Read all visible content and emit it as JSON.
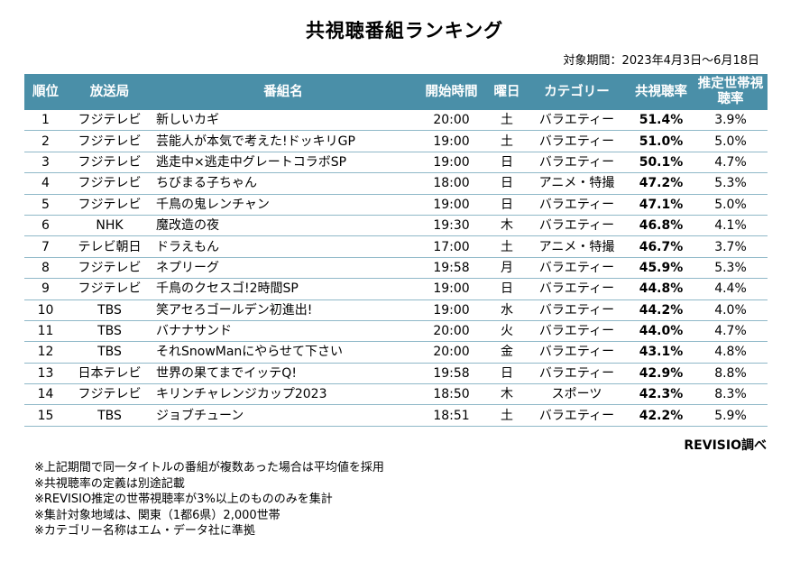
{
  "title": "共視聴番組ランキング",
  "period": "対象期間：2023年4月3日〜6月18日",
  "headers": {
    "rank": "順位",
    "station": "放送局",
    "program": "番組名",
    "start_time": "開始時間",
    "weekday": "曜日",
    "category": "カテゴリー",
    "co_viewing_rate": "共視聴率",
    "household_rate": "推定世帯視聴率"
  },
  "rows": [
    {
      "rank": "1",
      "station": "フジテレビ",
      "program": "新しいカギ",
      "time": "20:00",
      "day": "土",
      "category": "バラエティー",
      "rate": "51.4%",
      "household": "3.9%"
    },
    {
      "rank": "2",
      "station": "フジテレビ",
      "program": "芸能人が本気で考えた!ドッキリGP",
      "time": "19:00",
      "day": "土",
      "category": "バラエティー",
      "rate": "51.0%",
      "household": "5.0%"
    },
    {
      "rank": "3",
      "station": "フジテレビ",
      "program": "逃走中×逃走中グレートコラボSP",
      "time": "19:00",
      "day": "日",
      "category": "バラエティー",
      "rate": "50.1%",
      "household": "4.7%"
    },
    {
      "rank": "4",
      "station": "フジテレビ",
      "program": "ちびまる子ちゃん",
      "time": "18:00",
      "day": "日",
      "category": "アニメ・特撮",
      "rate": "47.2%",
      "household": "5.3%"
    },
    {
      "rank": "5",
      "station": "フジテレビ",
      "program": "千鳥の鬼レンチャン",
      "time": "19:00",
      "day": "日",
      "category": "バラエティー",
      "rate": "47.1%",
      "household": "5.0%"
    },
    {
      "rank": "6",
      "station": "NHK",
      "program": "魔改造の夜",
      "time": "19:30",
      "day": "木",
      "category": "バラエティー",
      "rate": "46.8%",
      "household": "4.1%"
    },
    {
      "rank": "7",
      "station": "テレビ朝日",
      "program": "ドラえもん",
      "time": "17:00",
      "day": "土",
      "category": "アニメ・特撮",
      "rate": "46.7%",
      "household": "3.7%"
    },
    {
      "rank": "8",
      "station": "フジテレビ",
      "program": "ネプリーグ",
      "time": "19:58",
      "day": "月",
      "category": "バラエティー",
      "rate": "45.9%",
      "household": "5.3%"
    },
    {
      "rank": "9",
      "station": "フジテレビ",
      "program": "千鳥のクセスゴ!2時間SP",
      "time": "19:00",
      "day": "日",
      "category": "バラエティー",
      "rate": "44.8%",
      "household": "4.4%"
    },
    {
      "rank": "10",
      "station": "TBS",
      "program": "笑アセろゴールデン初進出!",
      "time": "19:00",
      "day": "水",
      "category": "バラエティー",
      "rate": "44.2%",
      "household": "4.0%"
    },
    {
      "rank": "11",
      "station": "TBS",
      "program": "バナナサンド",
      "time": "20:00",
      "day": "火",
      "category": "バラエティー",
      "rate": "44.0%",
      "household": "4.7%"
    },
    {
      "rank": "12",
      "station": "TBS",
      "program": "それSnowManにやらせて下さい",
      "time": "20:00",
      "day": "金",
      "category": "バラエティー",
      "rate": "43.1%",
      "household": "4.8%"
    },
    {
      "rank": "13",
      "station": "日本テレビ",
      "program": "世界の果てまでイッテQ!",
      "time": "19:58",
      "day": "日",
      "category": "バラエティー",
      "rate": "42.9%",
      "household": "8.8%"
    },
    {
      "rank": "14",
      "station": "フジテレビ",
      "program": "キリンチャレンジカップ2023",
      "time": "18:50",
      "day": "木",
      "category": "スポーツ",
      "rate": "42.3%",
      "household": "8.3%"
    },
    {
      "rank": "15",
      "station": "TBS",
      "program": "ジョブチューン",
      "time": "18:51",
      "day": "土",
      "category": "バラエティー",
      "rate": "42.2%",
      "household": "5.9%"
    }
  ],
  "source": "REVISIO調べ",
  "notes": [
    "※上記期間で同一タイトルの番組が複数あった場合は平均値を採用",
    "※共視聴率の定義は別途記載",
    "※REVISIO推定の世帯視聴率が3%以上のもののみを集計",
    "※集計対象地域は、関東（1都6県）2,000世帯",
    "※カテゴリー名称はエム・データ社に準拠"
  ]
}
